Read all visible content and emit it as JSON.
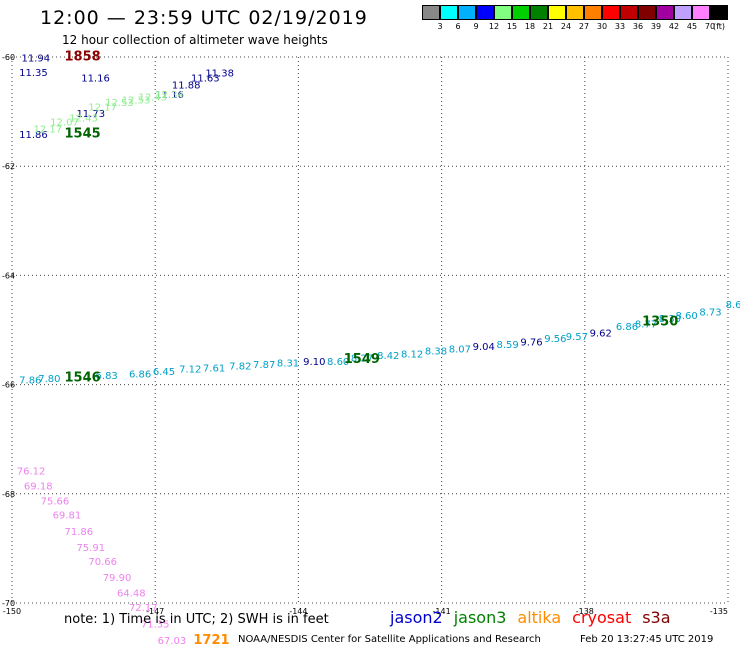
{
  "header": {
    "title": "12:00 — 23:59 UTC 02/19/2019",
    "subtitle": "12 hour collection of altimeter wave heights"
  },
  "colorbar": {
    "colors": [
      "#888888",
      "#00ffff",
      "#00b0ff",
      "#0000ff",
      "#80ff80",
      "#00d000",
      "#008000",
      "#ffff00",
      "#ffc000",
      "#ff8000",
      "#ff0000",
      "#c00000",
      "#800000",
      "#a000a0",
      "#c0a0ff",
      "#ff80ff",
      "#000000"
    ],
    "labels": [
      "3",
      "6",
      "9",
      "12",
      "15",
      "18",
      "21",
      "24",
      "27",
      "30",
      "33",
      "36",
      "39",
      "42",
      "45",
      "70"
    ],
    "unit": "(ft)"
  },
  "map": {
    "lon_range": [
      -150,
      -135
    ],
    "lat_range": [
      -70,
      -60
    ],
    "lon_ticks": [
      "-150",
      "-147",
      "-144",
      "-141",
      "-138",
      "-135"
    ],
    "lat_ticks": [
      "-60",
      "-62",
      "-64",
      "-66",
      "-68",
      "-70"
    ]
  },
  "tracks": [
    {
      "color": "#00008b",
      "points": [
        {
          "x": -149.8,
          "y": -60.08,
          "text": "11.94"
        },
        {
          "x": -149.85,
          "y": -60.35,
          "text": "11.35"
        },
        {
          "x": -148.55,
          "y": -60.45,
          "text": "11.16"
        },
        {
          "x": -147.0,
          "y": -60.75,
          "text": "11.16"
        },
        {
          "x": -146.65,
          "y": -60.58,
          "text": "11.88"
        },
        {
          "x": -146.25,
          "y": -60.45,
          "text": "11.63"
        },
        {
          "x": -145.95,
          "y": -60.36,
          "text": "11.38"
        },
        {
          "x": -148.65,
          "y": -61.1,
          "text": "11.73"
        },
        {
          "x": -149.85,
          "y": -61.48,
          "text": "11.86"
        }
      ]
    },
    {
      "color": "#90ee90",
      "points": [
        {
          "x": -149.55,
          "y": -61.38,
          "text": "12.17"
        },
        {
          "x": -149.2,
          "y": -61.25,
          "text": "12.07"
        },
        {
          "x": -148.8,
          "y": -61.18,
          "text": "12.43"
        },
        {
          "x": -148.4,
          "y": -60.98,
          "text": "12.17"
        },
        {
          "x": -148.05,
          "y": -60.9,
          "text": "12.53"
        },
        {
          "x": -147.7,
          "y": -60.85,
          "text": "12.53"
        },
        {
          "x": -147.35,
          "y": -60.8,
          "text": "12.43"
        },
        {
          "x": -147.0,
          "y": -60.75,
          "text": "12.34"
        }
      ]
    },
    {
      "color": "#00a0c8",
      "points": [
        {
          "x": -149.85,
          "y": -65.98,
          "text": "7.86"
        },
        {
          "x": -149.45,
          "y": -65.95,
          "text": "7.80"
        },
        {
          "x": -148.25,
          "y": -65.9,
          "text": "6.83"
        },
        {
          "x": -147.55,
          "y": -65.87,
          "text": "6.86"
        },
        {
          "x": -147.05,
          "y": -65.82,
          "text": "6.45"
        },
        {
          "x": -146.5,
          "y": -65.78,
          "text": "7.12"
        },
        {
          "x": -146.0,
          "y": -65.76,
          "text": "7.61"
        },
        {
          "x": -145.45,
          "y": -65.72,
          "text": "7.82"
        },
        {
          "x": -144.95,
          "y": -65.7,
          "text": "7.87"
        },
        {
          "x": -144.45,
          "y": -65.67,
          "text": "8.31"
        },
        {
          "x": -143.4,
          "y": -65.64,
          "text": "8.60"
        },
        {
          "x": -142.9,
          "y": -65.58,
          "text": "8.27"
        },
        {
          "x": -142.35,
          "y": -65.53,
          "text": "8.42"
        },
        {
          "x": -141.85,
          "y": -65.5,
          "text": "8.12"
        },
        {
          "x": -141.35,
          "y": -65.45,
          "text": "8.38"
        },
        {
          "x": -140.85,
          "y": -65.41,
          "text": "8.07"
        },
        {
          "x": -139.85,
          "y": -65.33,
          "text": "8.59"
        },
        {
          "x": -138.85,
          "y": -65.22,
          "text": "9.56"
        },
        {
          "x": -138.4,
          "y": -65.18,
          "text": "9.57"
        },
        {
          "x": -137.35,
          "y": -65.0,
          "text": "6.86"
        },
        {
          "x": -136.95,
          "y": -64.95,
          "text": "8.77"
        },
        {
          "x": -136.45,
          "y": -64.85,
          "text": "8.30"
        },
        {
          "x": -136.1,
          "y": -64.8,
          "text": "8.60"
        },
        {
          "x": -135.6,
          "y": -64.73,
          "text": "8.73"
        },
        {
          "x": -135.05,
          "y": -64.6,
          "text": "8.6"
        }
      ]
    },
    {
      "color": "#00008b",
      "points": [
        {
          "x": -143.9,
          "y": -65.64,
          "text": "9.10"
        },
        {
          "x": -140.35,
          "y": -65.37,
          "text": "9.04"
        },
        {
          "x": -139.35,
          "y": -65.28,
          "text": "9.76"
        },
        {
          "x": -137.9,
          "y": -65.12,
          "text": "9.62"
        }
      ]
    },
    {
      "color": "#ee82ee",
      "points": [
        {
          "x": -149.9,
          "y": -67.65,
          "text": "76.12"
        },
        {
          "x": -149.75,
          "y": -67.92,
          "text": "69.18"
        },
        {
          "x": -149.4,
          "y": -68.2,
          "text": "75.66"
        },
        {
          "x": -149.15,
          "y": -68.45,
          "text": "69.81"
        },
        {
          "x": -148.9,
          "y": -68.75,
          "text": "71.86"
        },
        {
          "x": -148.65,
          "y": -69.05,
          "text": "75.91"
        },
        {
          "x": -148.4,
          "y": -69.3,
          "text": "70.66"
        },
        {
          "x": -148.1,
          "y": -69.6,
          "text": "79.90"
        },
        {
          "x": -147.8,
          "y": -69.88,
          "text": "64.48"
        },
        {
          "x": -147.55,
          "y": -70.15,
          "text": "72.17"
        },
        {
          "x": -147.3,
          "y": -70.45,
          "text": "71.35"
        },
        {
          "x": -146.95,
          "y": -70.75,
          "text": "67.03"
        }
      ]
    }
  ],
  "times": [
    {
      "x": -148.9,
      "y": -60.06,
      "text": "1858",
      "color": "#8b0000"
    },
    {
      "x": -148.9,
      "y": -61.47,
      "text": "1545",
      "color": "#006400"
    },
    {
      "x": -148.9,
      "y": -65.94,
      "text": "1546",
      "color": "#006400"
    },
    {
      "x": -143.05,
      "y": -65.6,
      "text": "1549",
      "color": "#006400"
    },
    {
      "x": -136.8,
      "y": -64.92,
      "text": "1350",
      "color": "#006400"
    },
    {
      "x": -146.2,
      "y": -70.75,
      "text": "1721",
      "color": "#ff8c00"
    }
  ],
  "footer": {
    "note": "note: 1) Time is in UTC; 2) SWH is in feet",
    "legend": [
      {
        "name": "jason2",
        "color": "#0000cc"
      },
      {
        "name": "jason3",
        "color": "#008000"
      },
      {
        "name": "altika",
        "color": "#ff8c00"
      },
      {
        "name": "cryosat",
        "color": "#ff0000"
      },
      {
        "name": "s3a",
        "color": "#800000"
      }
    ],
    "credit": "NOAA/NESDIS Center for Satellite Applications and Research",
    "stamp": "Feb 20 13:27:45 UTC 2019"
  }
}
